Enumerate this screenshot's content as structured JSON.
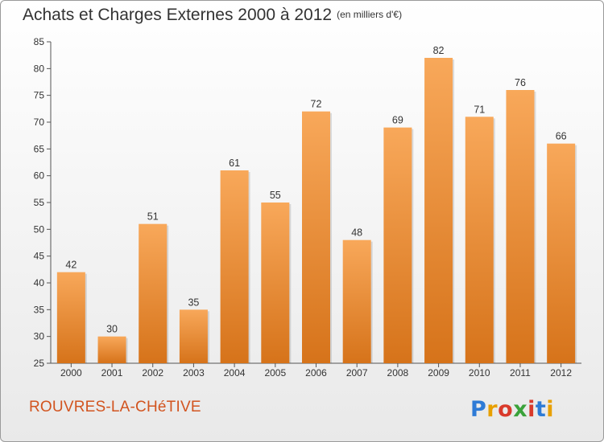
{
  "title": "Achats et Charges Externes 2000 à 2012",
  "unit_note": "(en milliers d'€)",
  "commune": "ROUVRES-LA-CHéTIVE",
  "logo_text": "Proxiti",
  "colors": {
    "bar_top": "#f8a85a",
    "bar_bottom": "#d6731a",
    "commune": "#d2541f"
  },
  "chart_data": {
    "type": "bar",
    "title": "Achats et Charges Externes 2000 à 2012",
    "subtitle": "(en milliers d'€)",
    "xlabel": "",
    "ylabel": "",
    "categories": [
      "2000",
      "2001",
      "2002",
      "2003",
      "2004",
      "2005",
      "2006",
      "2007",
      "2008",
      "2009",
      "2010",
      "2011",
      "2012"
    ],
    "values": [
      42,
      30,
      51,
      35,
      61,
      55,
      72,
      48,
      69,
      82,
      71,
      76,
      66
    ],
    "ylim": [
      25,
      85
    ],
    "yticks": [
      25,
      30,
      35,
      40,
      45,
      50,
      55,
      60,
      65,
      70,
      75,
      80,
      85
    ],
    "grid": false,
    "data_labels": true
  }
}
